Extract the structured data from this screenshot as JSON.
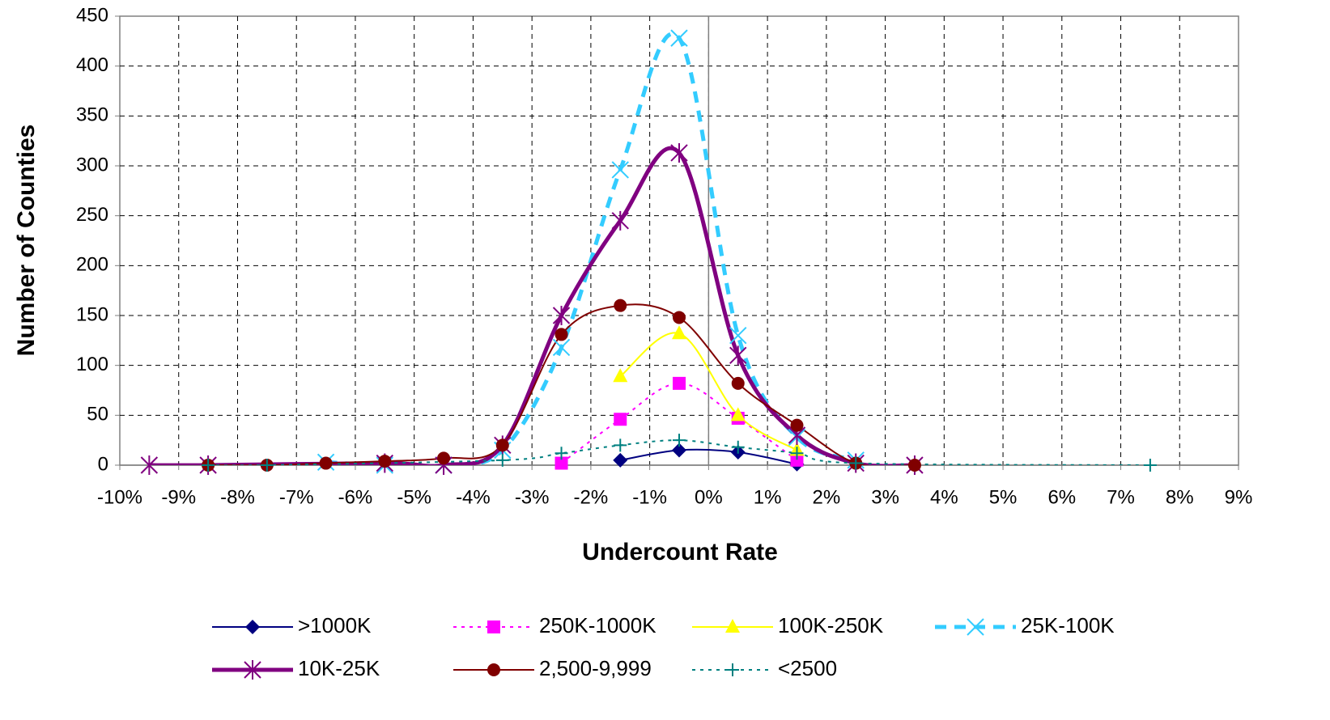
{
  "chart_data": {
    "type": "line",
    "xlabel": "Undercount Rate",
    "ylabel": "Number of Counties",
    "xlim": [
      -10,
      9
    ],
    "ylim": [
      0,
      450
    ],
    "xticks": [
      {
        "value": -10,
        "label": "-10%"
      },
      {
        "value": -9,
        "label": "-9%"
      },
      {
        "value": -8,
        "label": "-8%"
      },
      {
        "value": -7,
        "label": "-7%"
      },
      {
        "value": -6,
        "label": "-6%"
      },
      {
        "value": -5,
        "label": "-5%"
      },
      {
        "value": -4,
        "label": "-4%"
      },
      {
        "value": -3,
        "label": "-3%"
      },
      {
        "value": -2,
        "label": "-2%"
      },
      {
        "value": -1,
        "label": "-1%"
      },
      {
        "value": 0,
        "label": "0%"
      },
      {
        "value": 1,
        "label": "1%"
      },
      {
        "value": 2,
        "label": "2%"
      },
      {
        "value": 3,
        "label": "3%"
      },
      {
        "value": 4,
        "label": "4%"
      },
      {
        "value": 5,
        "label": "5%"
      },
      {
        "value": 6,
        "label": "6%"
      },
      {
        "value": 7,
        "label": "7%"
      },
      {
        "value": 8,
        "label": "8%"
      },
      {
        "value": 9,
        "label": "9%"
      }
    ],
    "yticks": [
      0,
      50,
      100,
      150,
      200,
      250,
      300,
      350,
      400,
      450
    ],
    "grid": true,
    "legend": "bottom",
    "series": [
      {
        "name": ">1000K",
        "color": "#000080",
        "marker": "diamond",
        "dash": "solid",
        "width": 2,
        "x": [
          -1.5,
          -0.5,
          0.5,
          1.5
        ],
        "values": [
          5,
          15,
          13,
          1
        ]
      },
      {
        "name": "250K-1000K",
        "color": "#ff00ff",
        "marker": "square",
        "dash": "dotted",
        "width": 2,
        "x": [
          -2.5,
          -1.5,
          -0.5,
          0.5,
          1.5
        ],
        "values": [
          2,
          46,
          82,
          47,
          5
        ]
      },
      {
        "name": "100K-250K",
        "color": "#ffff00",
        "marker": "triangle",
        "dash": "solid",
        "width": 2,
        "x": [
          -1.5,
          -0.5,
          0.5,
          1.5
        ],
        "values": [
          89,
          132,
          50,
          15
        ]
      },
      {
        "name": "25K-100K",
        "color": "#33ccff",
        "marker": "x",
        "dash": "dashed",
        "width": 5,
        "x": [
          -6.5,
          -5.5,
          -4.5,
          -3.5,
          -2.5,
          -1.5,
          -0.5,
          0.5,
          1.5,
          2.5
        ],
        "values": [
          3,
          0,
          0,
          15,
          118,
          296,
          428,
          130,
          28,
          5
        ]
      },
      {
        "name": "10K-25K",
        "color": "#800080",
        "marker": "star",
        "dash": "solid",
        "width": 5,
        "x": [
          -9.5,
          -8.5,
          -5.5,
          -4.5,
          -3.5,
          -2.5,
          -1.5,
          -0.5,
          0.5,
          1.5,
          2.5,
          3.5
        ],
        "values": [
          0,
          0,
          2,
          0,
          20,
          150,
          245,
          313,
          110,
          30,
          2,
          0
        ]
      },
      {
        "name": "2,500-9,999",
        "color": "#800000",
        "marker": "circle",
        "dash": "solid",
        "width": 2,
        "x": [
          -8.5,
          -7.5,
          -6.5,
          -5.5,
          -4.5,
          -3.5,
          -2.5,
          -1.5,
          -0.5,
          0.5,
          1.5,
          2.5,
          3.5
        ],
        "values": [
          0,
          0,
          2,
          4,
          7,
          20,
          131,
          160,
          148,
          82,
          40,
          2,
          0
        ]
      },
      {
        "name": "<2500",
        "color": "#008080",
        "marker": "plus",
        "dash": "dotted",
        "width": 2,
        "x": [
          -8.5,
          -7.5,
          -3.5,
          -2.5,
          -1.5,
          -0.5,
          0.5,
          1.5,
          2.5,
          7.5
        ],
        "values": [
          0,
          0,
          5,
          12,
          20,
          25,
          18,
          12,
          2,
          0
        ]
      }
    ]
  }
}
